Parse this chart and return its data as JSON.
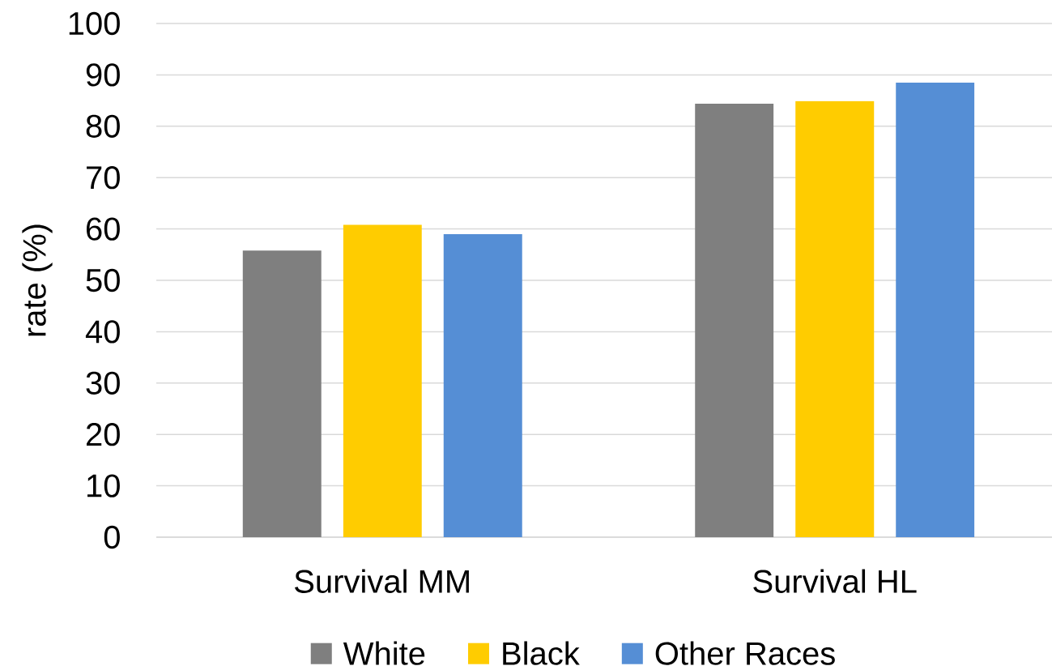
{
  "chart_data": {
    "type": "bar",
    "ylabel": "rate (%)",
    "categories": [
      "Survival MM",
      "Survival HL"
    ],
    "series": [
      {
        "name": "White",
        "color": "#7f7f7f",
        "values": [
          55.8,
          84.4
        ]
      },
      {
        "name": "Black",
        "color": "#ffcc00",
        "values": [
          60.8,
          84.9
        ]
      },
      {
        "name": "Other Races",
        "color": "#558ed5",
        "values": [
          59.0,
          88.5
        ]
      }
    ],
    "ylim": [
      0,
      100
    ],
    "yticks": [
      0,
      10,
      20,
      30,
      40,
      50,
      60,
      70,
      80,
      90,
      100
    ],
    "grid": "y",
    "legend": "bottom"
  }
}
